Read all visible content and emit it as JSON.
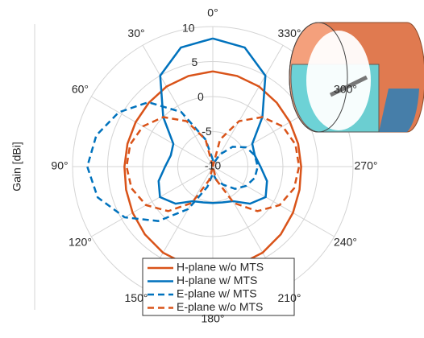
{
  "chart_data": {
    "type": "polar-line",
    "ylabel": "Gain [dBi]",
    "rlim": [
      -10,
      10
    ],
    "rticks": [
      -10,
      -5,
      0,
      5,
      10
    ],
    "thetaticks": [
      {
        "value": 0,
        "label": "0°"
      },
      {
        "value": 30,
        "label": "30°"
      },
      {
        "value": 60,
        "label": "60°"
      },
      {
        "value": 90,
        "label": "90°"
      },
      {
        "value": 120,
        "label": "120°"
      },
      {
        "value": 150,
        "label": "150°"
      },
      {
        "value": 180,
        "label": "180°"
      },
      {
        "value": 210,
        "label": "210°"
      },
      {
        "value": 240,
        "label": "240°"
      },
      {
        "value": 270,
        "label": "270°"
      },
      {
        "value": 300,
        "label": "300°"
      },
      {
        "value": 330,
        "label": "330°"
      }
    ],
    "theta_direction": "counterclockwise",
    "theta_zero": "top",
    "grid": true,
    "theta": [
      0,
      15,
      30,
      45,
      60,
      75,
      90,
      105,
      120,
      135,
      150,
      165,
      180,
      195,
      210,
      225,
      240,
      255,
      270,
      285,
      300,
      315,
      330,
      345,
      360
    ],
    "series": [
      {
        "name": "H-plane w/o MTS",
        "color": "#d95319",
        "dash": "solid",
        "values": [
          3.6,
          3.4,
          3.2,
          2.9,
          2.7,
          2.6,
          2.6,
          2.8,
          3.2,
          3.7,
          4.2,
          4.5,
          4.6,
          4.5,
          4.2,
          3.7,
          3.2,
          2.8,
          2.6,
          2.6,
          2.7,
          2.9,
          3.2,
          3.4,
          3.6
        ]
      },
      {
        "name": "H-plane w/ MTS",
        "color": "#0072bd",
        "dash": "solid",
        "values": [
          8.3,
          7.6,
          5,
          0,
          -3.5,
          -3.8,
          -3.2,
          -2,
          -1.3,
          -2.5,
          -4.3,
          -4.7,
          -4.8,
          -4.7,
          -4.3,
          -2.5,
          -1.3,
          -2,
          -3.2,
          -3.8,
          -3.5,
          0,
          5,
          7.6,
          8.3
        ]
      },
      {
        "name": "E-plane w/ MTS",
        "color": "#0072bd",
        "dash": "dashed",
        "values": [
          -9,
          -6,
          -1,
          3,
          5.5,
          7.2,
          7.9,
          7,
          4.5,
          1,
          -3,
          -7,
          -9,
          -8,
          -7,
          -5.5,
          -4.5,
          -3.8,
          -3.6,
          -3.8,
          -4.5,
          -6,
          -8,
          -9.5,
          -9
        ]
      },
      {
        "name": "E-plane w/o MTS",
        "color": "#d95319",
        "dash": "dashed",
        "values": [
          -10,
          -6,
          -2.5,
          0,
          1.5,
          2.2,
          2.3,
          2,
          1,
          -1,
          -4,
          -8,
          -10,
          -8,
          -4,
          -1,
          1,
          2,
          2.3,
          2.2,
          1.5,
          0,
          -2.5,
          -6,
          -10
        ]
      }
    ]
  }
}
